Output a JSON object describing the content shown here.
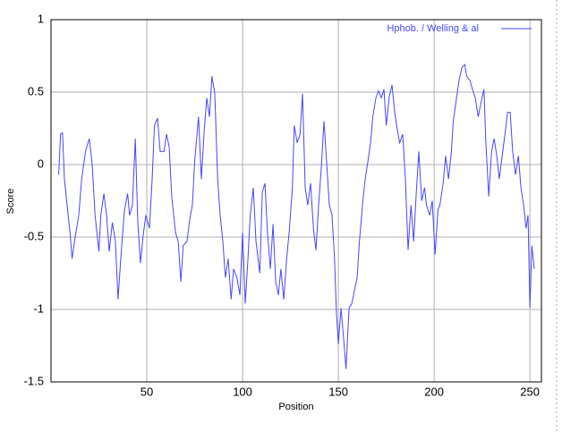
{
  "chart_data": {
    "type": "line",
    "xlabel": "Position",
    "ylabel": "Score",
    "xlim": [
      0,
      256
    ],
    "ylim": [
      -1.5,
      1
    ],
    "xticks": [
      50,
      100,
      150,
      200,
      250
    ],
    "yticks": [
      -1.5,
      -1,
      -0.5,
      0,
      0.5,
      1
    ],
    "grid": true,
    "legend": "upper right",
    "x": [
      4,
      5,
      6,
      7,
      8.4,
      10,
      11,
      12.6,
      14.5,
      16,
      18,
      20,
      21.5,
      23,
      25,
      26,
      27.6,
      29,
      30.4,
      32,
      33.6,
      35,
      36.4,
      38.3,
      40,
      41,
      42.5,
      44,
      45.3,
      46.7,
      48,
      49.5,
      51.4,
      52.8,
      54,
      55.6,
      57,
      59,
      60.3,
      61.7,
      63,
      65,
      66.4,
      67.8,
      69,
      71,
      72.4,
      73.8,
      75,
      77,
      78.5,
      80,
      81.3,
      82.7,
      84,
      85.5,
      87,
      88.3,
      89.7,
      91,
      92.5,
      94,
      95.3,
      97,
      98.6,
      100,
      101.4,
      102.8,
      104,
      105.6,
      107,
      109,
      110.3,
      111.7,
      113,
      114.5,
      115.9,
      117.3,
      118.7,
      120,
      121.5,
      123,
      124.3,
      126,
      127,
      128.5,
      130,
      131.3,
      132.7,
      134,
      135.5,
      137,
      138.3,
      139.7,
      141,
      142.5,
      144,
      145.3,
      146.7,
      148,
      149,
      150,
      151.4,
      152.8,
      154,
      155.6,
      157,
      158.4,
      159.8,
      161,
      162.6,
      164,
      165.4,
      166.8,
      168,
      169.6,
      171,
      172.4,
      173.8,
      175,
      176.6,
      178,
      179.4,
      180.8,
      182,
      183.6,
      185,
      186.4,
      187.9,
      189.3,
      190.7,
      192,
      193.5,
      195,
      196,
      197.7,
      199,
      200.5,
      202,
      203,
      204.7,
      206,
      207.5,
      209,
      210,
      211.7,
      213,
      214.5,
      216,
      217,
      218.7,
      220,
      221.5,
      223,
      224.5,
      226,
      227,
      228.5,
      230,
      231.3,
      232.7,
      234,
      235.5,
      237,
      238.3,
      239.7,
      241,
      242.5,
      244,
      245.3,
      246.7,
      248,
      249,
      250,
      251,
      252.3
    ],
    "series": [
      {
        "name": "Hphob. / Welling & al",
        "color": "#4646ff",
        "values": [
          -0.07,
          0.21,
          0.22,
          -0.1,
          -0.28,
          -0.48,
          -0.65,
          -0.5,
          -0.35,
          -0.1,
          0.09,
          0.18,
          0,
          -0.35,
          -0.6,
          -0.35,
          -0.2,
          -0.35,
          -0.6,
          -0.4,
          -0.53,
          -0.93,
          -0.65,
          -0.32,
          -0.2,
          -0.35,
          -0.28,
          0.18,
          -0.4,
          -0.68,
          -0.5,
          -0.35,
          -0.44,
          -0.1,
          0.27,
          0.32,
          0.09,
          0.09,
          0.21,
          0.12,
          -0.22,
          -0.47,
          -0.53,
          -0.81,
          -0.56,
          -0.53,
          -0.38,
          -0.28,
          0.02,
          0.33,
          -0.1,
          0.24,
          0.46,
          0.33,
          0.61,
          0.49,
          -0.1,
          -0.35,
          -0.53,
          -0.78,
          -0.65,
          -0.93,
          -0.72,
          -0.78,
          -0.9,
          -0.47,
          -0.96,
          -0.65,
          -0.35,
          -0.16,
          -0.53,
          -0.75,
          -0.19,
          -0.13,
          -0.47,
          -0.72,
          -0.41,
          -0.81,
          -0.9,
          -0.72,
          -0.93,
          -0.65,
          -0.47,
          -0.16,
          0.27,
          0.15,
          0.21,
          0.49,
          -0.16,
          -0.28,
          -0.13,
          -0.44,
          -0.59,
          -0.28,
          -0.04,
          0.3,
          -0.01,
          -0.28,
          -0.35,
          -0.65,
          -1.02,
          -1.24,
          -0.99,
          -1.21,
          -1.41,
          -0.99,
          -0.96,
          -0.87,
          -0.78,
          -0.53,
          -0.28,
          -0.1,
          0.02,
          0.15,
          0.33,
          0.46,
          0.51,
          0.46,
          0.52,
          0.27,
          0.47,
          0.55,
          0.36,
          0.24,
          0.15,
          0.21,
          -0.1,
          -0.59,
          -0.28,
          -0.53,
          -0.19,
          0.09,
          -0.25,
          -0.16,
          -0.28,
          -0.35,
          -0.25,
          -0.62,
          -0.31,
          -0.28,
          -0.13,
          0.06,
          -0.1,
          0.09,
          0.3,
          0.46,
          0.58,
          0.67,
          0.69,
          0.61,
          0.58,
          0.52,
          0.46,
          0.33,
          0.43,
          0.52,
          0.15,
          -0.22,
          0.09,
          0.18,
          0.06,
          -0.1,
          0.06,
          0.21,
          0.36,
          0.36,
          0.09,
          -0.07,
          0.06,
          -0.16,
          -0.28,
          -0.44,
          -0.35,
          -0.99,
          -0.56,
          -0.72
        ]
      }
    ]
  }
}
